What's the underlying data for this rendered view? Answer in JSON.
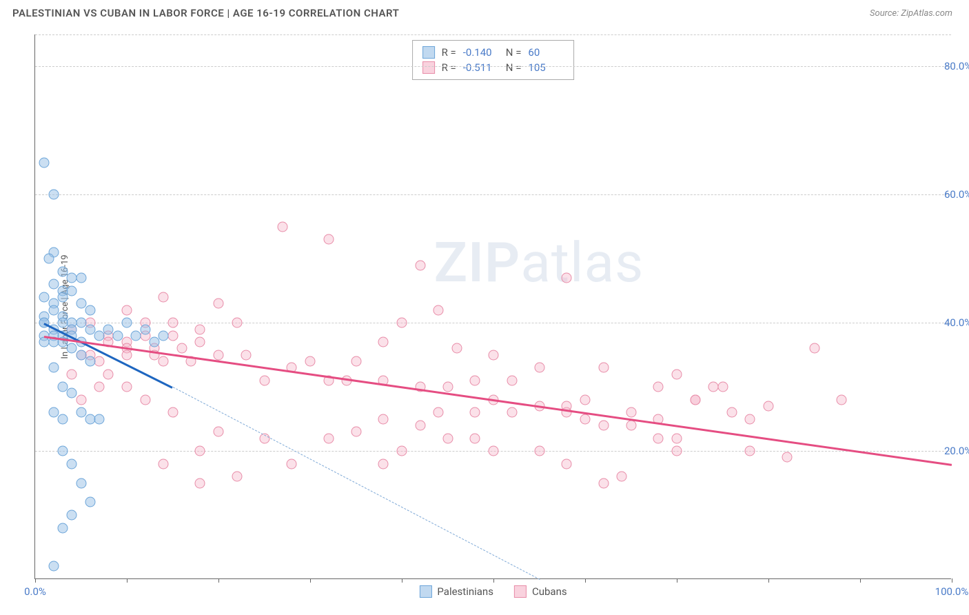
{
  "header": {
    "title": "PALESTINIAN VS CUBAN IN LABOR FORCE | AGE 16-19 CORRELATION CHART",
    "source": "Source: ZipAtlas.com"
  },
  "chart": {
    "type": "scatter",
    "ylabel": "In Labor Force | Age 16-19",
    "xlim": [
      0,
      100
    ],
    "ylim": [
      0,
      85
    ],
    "yticks": [
      {
        "v": 20,
        "label": "20.0%"
      },
      {
        "v": 40,
        "label": "40.0%"
      },
      {
        "v": 60,
        "label": "60.0%"
      },
      {
        "v": 80,
        "label": "80.0%"
      }
    ],
    "xticks": [
      0,
      10,
      20,
      30,
      40,
      50,
      60,
      70,
      80,
      90,
      100
    ],
    "xlabels": {
      "0": "0.0%",
      "100": "100.0%"
    },
    "grid_color": "#cccccc",
    "background_color": "#ffffff",
    "marker_size": 15,
    "colors": {
      "blue_fill": "rgba(151,192,230,0.5)",
      "blue_stroke": "#6ca5d9",
      "blue_line": "#1e66c0",
      "pink_fill": "rgba(245,180,200,0.4)",
      "pink_stroke": "#e88ca8",
      "pink_line": "#e54d82",
      "tick_text": "#4a7bc8"
    },
    "correlation_box": {
      "rows": [
        {
          "swatch": "blue",
          "r_label": "R =",
          "r": "-0.140",
          "n_label": "N =",
          "n": "60"
        },
        {
          "swatch": "pink",
          "r_label": "R =",
          "r": "-0.511",
          "n_label": "N =",
          "n": "105"
        }
      ]
    },
    "bottom_legend": [
      {
        "swatch": "blue",
        "label": "Palestinians"
      },
      {
        "swatch": "pink",
        "label": "Cubans"
      }
    ],
    "watermark": {
      "bold": "ZIP",
      "light": "atlas"
    },
    "series": {
      "palestinians": {
        "trend": {
          "x1": 1,
          "y1": 40,
          "x2": 15,
          "y2": 30,
          "dash_to_x": 55,
          "dash_to_y": 0
        },
        "points": [
          [
            1,
            65
          ],
          [
            2,
            60
          ],
          [
            2,
            51
          ],
          [
            1.5,
            50
          ],
          [
            3,
            48
          ],
          [
            4,
            47
          ],
          [
            5,
            47
          ],
          [
            2,
            46
          ],
          [
            3,
            45
          ],
          [
            4,
            45
          ],
          [
            1,
            44
          ],
          [
            2,
            43
          ],
          [
            3,
            44
          ],
          [
            5,
            43
          ],
          [
            6,
            42
          ],
          [
            1,
            41
          ],
          [
            2,
            42
          ],
          [
            3,
            41
          ],
          [
            4,
            40
          ],
          [
            1,
            40
          ],
          [
            2,
            39
          ],
          [
            3,
            40
          ],
          [
            4,
            39
          ],
          [
            5,
            40
          ],
          [
            6,
            39
          ],
          [
            1,
            38
          ],
          [
            2,
            38
          ],
          [
            3,
            38
          ],
          [
            4,
            38
          ],
          [
            1,
            37
          ],
          [
            2,
            37
          ],
          [
            3,
            37
          ],
          [
            5,
            37
          ],
          [
            7,
            38
          ],
          [
            8,
            39
          ],
          [
            9,
            38
          ],
          [
            10,
            40
          ],
          [
            11,
            38
          ],
          [
            12,
            39
          ],
          [
            13,
            37
          ],
          [
            14,
            38
          ],
          [
            4,
            36
          ],
          [
            5,
            35
          ],
          [
            6,
            34
          ],
          [
            2,
            33
          ],
          [
            3,
            30
          ],
          [
            4,
            29
          ],
          [
            2,
            26
          ],
          [
            3,
            25
          ],
          [
            5,
            26
          ],
          [
            6,
            25
          ],
          [
            7,
            25
          ],
          [
            3,
            20
          ],
          [
            4,
            18
          ],
          [
            5,
            15
          ],
          [
            6,
            12
          ],
          [
            4,
            10
          ],
          [
            3,
            8
          ],
          [
            2,
            2
          ],
          [
            1,
            40
          ]
        ]
      },
      "cubans": {
        "trend": {
          "x1": 1,
          "y1": 38,
          "x2": 100,
          "y2": 18
        },
        "points": [
          [
            27,
            55
          ],
          [
            32,
            53
          ],
          [
            42,
            49
          ],
          [
            58,
            47
          ],
          [
            14,
            44
          ],
          [
            20,
            43
          ],
          [
            10,
            42
          ],
          [
            12,
            40
          ],
          [
            15,
            40
          ],
          [
            18,
            39
          ],
          [
            22,
            40
          ],
          [
            8,
            38
          ],
          [
            10,
            37
          ],
          [
            12,
            38
          ],
          [
            15,
            38
          ],
          [
            18,
            37
          ],
          [
            4,
            39
          ],
          [
            6,
            40
          ],
          [
            8,
            37
          ],
          [
            10,
            36
          ],
          [
            13,
            36
          ],
          [
            16,
            36
          ],
          [
            5,
            35
          ],
          [
            7,
            34
          ],
          [
            10,
            35
          ],
          [
            13,
            35
          ],
          [
            14,
            34
          ],
          [
            17,
            34
          ],
          [
            20,
            35
          ],
          [
            23,
            35
          ],
          [
            40,
            40
          ],
          [
            44,
            42
          ],
          [
            46,
            36
          ],
          [
            50,
            35
          ],
          [
            38,
            37
          ],
          [
            35,
            34
          ],
          [
            30,
            34
          ],
          [
            28,
            33
          ],
          [
            25,
            31
          ],
          [
            32,
            31
          ],
          [
            34,
            31
          ],
          [
            38,
            31
          ],
          [
            42,
            30
          ],
          [
            45,
            30
          ],
          [
            48,
            31
          ],
          [
            50,
            28
          ],
          [
            52,
            26
          ],
          [
            55,
            27
          ],
          [
            58,
            26
          ],
          [
            60,
            25
          ],
          [
            44,
            26
          ],
          [
            42,
            24
          ],
          [
            38,
            25
          ],
          [
            48,
            26
          ],
          [
            52,
            31
          ],
          [
            55,
            33
          ],
          [
            58,
            27
          ],
          [
            60,
            28
          ],
          [
            62,
            24
          ],
          [
            65,
            24
          ],
          [
            68,
            30
          ],
          [
            70,
            32
          ],
          [
            72,
            28
          ],
          [
            75,
            30
          ],
          [
            76,
            26
          ],
          [
            78,
            20
          ],
          [
            62,
            33
          ],
          [
            65,
            26
          ],
          [
            68,
            25
          ],
          [
            70,
            22
          ],
          [
            72,
            28
          ],
          [
            74,
            30
          ],
          [
            78,
            25
          ],
          [
            80,
            27
          ],
          [
            82,
            19
          ],
          [
            85,
            36
          ],
          [
            68,
            22
          ],
          [
            70,
            20
          ],
          [
            50,
            20
          ],
          [
            48,
            22
          ],
          [
            40,
            20
          ],
          [
            35,
            23
          ],
          [
            32,
            22
          ],
          [
            28,
            18
          ],
          [
            25,
            22
          ],
          [
            20,
            23
          ],
          [
            18,
            20
          ],
          [
            15,
            26
          ],
          [
            12,
            28
          ],
          [
            10,
            30
          ],
          [
            8,
            32
          ],
          [
            7,
            30
          ],
          [
            5,
            28
          ],
          [
            4,
            32
          ],
          [
            6,
            35
          ],
          [
            64,
            16
          ],
          [
            62,
            15
          ],
          [
            22,
            16
          ],
          [
            18,
            15
          ],
          [
            14,
            18
          ],
          [
            38,
            18
          ],
          [
            55,
            20
          ],
          [
            58,
            18
          ],
          [
            45,
            22
          ],
          [
            88,
            28
          ]
        ]
      }
    }
  }
}
